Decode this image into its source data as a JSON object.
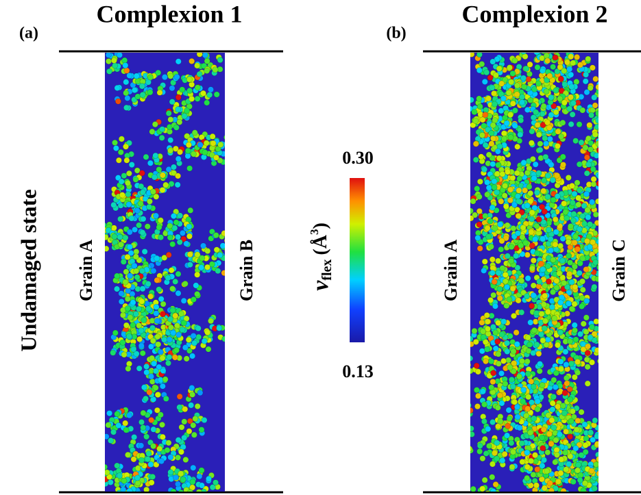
{
  "row_label": "Undamaged state",
  "panels": [
    {
      "label": "(a)",
      "title": "Complexion 1",
      "left_grain": "Grain A",
      "right_grain": "Grain B"
    },
    {
      "label": "(b)",
      "title": "Complexion 2",
      "left_grain": "Grain A",
      "right_grain": "Grain C"
    }
  ],
  "colorbar": {
    "symbol": "v",
    "subscript": "flex",
    "unit_open": "(Å",
    "unit_superscript": "3",
    "unit_close": ")",
    "max_label": "0.30",
    "min_label": "0.13"
  }
}
